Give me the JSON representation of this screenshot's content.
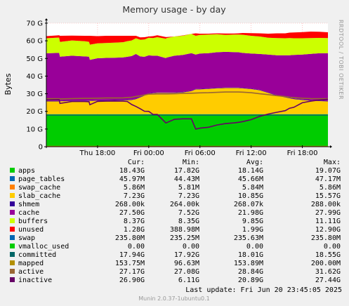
{
  "chart_data": {
    "type": "area",
    "title": "Memory usage - by day",
    "ylabel": "Bytes",
    "side_label": "RRDTOOL / TOBI OETIKER",
    "ylim": [
      0,
      70
    ],
    "y_ticks": [
      0,
      10,
      20,
      30,
      40,
      50,
      60,
      70
    ],
    "y_tick_labels": [
      "0",
      "10 G",
      "20 G",
      "30 G",
      "40 G",
      "50 G",
      "60 G",
      "70 G"
    ],
    "x_ticks": [
      {
        "label": "Thu 18:00",
        "hour": 6
      },
      {
        "label": "Fri 00:00",
        "hour": 12
      },
      {
        "label": "Fri 06:00",
        "hour": 18
      },
      {
        "label": "Fri 12:00",
        "hour": 24
      },
      {
        "label": "Fri 18:00",
        "hour": 30
      }
    ],
    "x_range_hours": [
      0,
      33
    ],
    "grid": true,
    "x": [
      0,
      1.5,
      1.6,
      3,
      4.5,
      5,
      5.1,
      6,
      7,
      8,
      9,
      9.5,
      10,
      10.5,
      11,
      11.5,
      12,
      12.5,
      13,
      14,
      14.1,
      15,
      16,
      17,
      17.5,
      18,
      19,
      20,
      21,
      22,
      22.5,
      23,
      24,
      25,
      26,
      27,
      28,
      28.5,
      29,
      30,
      31,
      32,
      33
    ],
    "series": [
      {
        "name": "apps",
        "color": "#00CC00",
        "values": [
          18.4,
          18.4,
          18.4,
          18.4,
          18.4,
          18.4,
          18.4,
          18.4,
          18.4,
          18.4,
          18.4,
          18.4,
          18.4,
          18.4,
          18.4,
          18.4,
          18.4,
          18.4,
          18.4,
          18.4,
          18.4,
          18.4,
          18.4,
          18.4,
          18.4,
          18.4,
          18.4,
          18.4,
          18.4,
          18.4,
          18.4,
          18.4,
          18.4,
          18.4,
          18.4,
          18.4,
          18.4,
          18.4,
          18.4,
          18.4,
          18.4,
          18.4,
          18.4
        ]
      },
      {
        "name": "page_tables",
        "color": "#0066B3",
        "values": [
          0.05,
          0.05,
          0.05,
          0.05,
          0.05,
          0.05,
          0.05,
          0.05,
          0.05,
          0.05,
          0.05,
          0.05,
          0.05,
          0.05,
          0.05,
          0.05,
          0.05,
          0.05,
          0.05,
          0.05,
          0.05,
          0.05,
          0.05,
          0.05,
          0.05,
          0.05,
          0.05,
          0.05,
          0.05,
          0.05,
          0.05,
          0.05,
          0.05,
          0.05,
          0.05,
          0.05,
          0.05,
          0.05,
          0.05,
          0.05,
          0.05,
          0.05,
          0.05
        ]
      },
      {
        "name": "swap_cache",
        "color": "#FF8000",
        "values": [
          0.01,
          0.01,
          0.01,
          0.01,
          0.01,
          0.01,
          0.01,
          0.01,
          0.01,
          0.01,
          0.01,
          0.01,
          0.01,
          0.01,
          0.01,
          0.01,
          0.01,
          0.01,
          0.01,
          0.01,
          0.01,
          0.01,
          0.01,
          0.01,
          0.01,
          0.01,
          0.01,
          0.01,
          0.01,
          0.01,
          0.01,
          0.01,
          0.01,
          0.01,
          0.01,
          0.01,
          0.01,
          0.01,
          0.01,
          0.01,
          0.01,
          0.01,
          0.01
        ]
      },
      {
        "name": "slab_cache",
        "color": "#FFCC00",
        "values": [
          7.2,
          7.2,
          7.3,
          7.4,
          7.4,
          7.5,
          7.5,
          7.6,
          7.6,
          7.7,
          7.8,
          7.9,
          8.0,
          8.5,
          9.5,
          10.5,
          11.5,
          11.8,
          12.0,
          12.0,
          12.0,
          12.0,
          12.3,
          13.0,
          14.0,
          14.0,
          14.3,
          14.6,
          14.8,
          14.8,
          14.8,
          14.6,
          14.2,
          13.5,
          12.0,
          10.5,
          9.5,
          9.0,
          8.5,
          8.0,
          7.6,
          7.4,
          7.2
        ]
      },
      {
        "name": "shmem",
        "color": "#330099",
        "values": [
          0.27,
          0.27,
          0.27,
          0.27,
          0.27,
          0.27,
          0.27,
          0.27,
          0.27,
          0.27,
          0.27,
          0.27,
          0.27,
          0.27,
          0.27,
          0.27,
          0.27,
          0.27,
          0.27,
          0.27,
          0.27,
          0.27,
          0.27,
          0.27,
          0.27,
          0.27,
          0.27,
          0.27,
          0.27,
          0.27,
          0.27,
          0.27,
          0.27,
          0.27,
          0.27,
          0.27,
          0.27,
          0.27,
          0.27,
          0.27,
          0.27,
          0.27,
          0.27
        ]
      },
      {
        "name": "cache",
        "color": "#990099",
        "values": [
          27.0,
          27.2,
          25.0,
          25.4,
          25.0,
          24.8,
          23.0,
          23.8,
          24.0,
          24.0,
          24.1,
          24.3,
          24.6,
          25.3,
          22.9,
          21.7,
          21.5,
          21.0,
          20.8,
          19.5,
          19.8,
          20.8,
          21.0,
          21.3,
          19.5,
          20.1,
          20.0,
          20.2,
          20.2,
          20.1,
          20.0,
          19.8,
          19.9,
          20.3,
          21.5,
          22.6,
          23.6,
          24.1,
          24.8,
          25.5,
          26.3,
          26.8,
          27.1
        ]
      },
      {
        "name": "buffers",
        "color": "#CCFF00",
        "values": [
          8.5,
          8.7,
          8.3,
          8.7,
          8.6,
          8.4,
          8.6,
          8.4,
          8.4,
          8.5,
          8.6,
          8.9,
          8.9,
          8.9,
          9.5,
          9.8,
          10.0,
          10.0,
          10.5,
          11.0,
          11.0,
          10.9,
          10.8,
          10.9,
          10.6,
          10.5,
          10.5,
          10.2,
          9.6,
          9.9,
          10.0,
          10.3,
          10.0,
          9.9,
          9.5,
          9.7,
          9.6,
          9.7,
          9.4,
          9.2,
          8.9,
          8.7,
          8.5
        ]
      },
      {
        "name": "unused",
        "color": "#FF0000",
        "values": [
          1.2,
          1.3,
          3.5,
          2.7,
          3.1,
          3.4,
          5.0,
          4.1,
          4.1,
          3.9,
          3.6,
          3.0,
          2.6,
          1.4,
          1.3,
          1.3,
          0.7,
          1.1,
          1.1,
          0.9,
          0.6,
          0.0,
          0.2,
          0.0,
          1.4,
          0.7,
          0.5,
          0.5,
          0.8,
          0.6,
          0.7,
          1.0,
          1.5,
          1.8,
          2.3,
          2.7,
          2.8,
          3.1,
          3.3,
          3.5,
          3.7,
          3.5,
          3.3
        ]
      }
    ],
    "lines": [
      {
        "name": "committed",
        "color": "#006666",
        "values": [
          17.9,
          17.9,
          17.9,
          17.9,
          17.9,
          17.9,
          17.9,
          17.9,
          17.9,
          17.9,
          17.9,
          17.9,
          17.9,
          17.9,
          17.9,
          17.9,
          17.9,
          17.9,
          17.9,
          17.9,
          17.9,
          17.9,
          17.9,
          17.9,
          17.9,
          17.9,
          17.9,
          17.9,
          17.9,
          17.9,
          17.9,
          17.9,
          17.9,
          17.9,
          17.9,
          17.9,
          17.9,
          17.9,
          17.9,
          17.9,
          17.9,
          17.9,
          17.9
        ]
      },
      {
        "name": "mapped",
        "color": "#B38F00",
        "values": [
          0.15,
          0.15,
          0.15,
          0.15,
          0.15,
          0.15,
          0.15,
          0.15,
          0.15,
          0.15,
          0.15,
          0.15,
          0.15,
          0.15,
          0.15,
          0.15,
          0.15,
          0.15,
          0.15,
          0.15,
          0.15,
          0.15,
          0.15,
          0.15,
          0.15,
          0.15,
          0.15,
          0.15,
          0.15,
          0.15,
          0.15,
          0.15,
          0.15,
          0.15,
          0.15,
          0.15,
          0.15,
          0.15,
          0.15,
          0.15,
          0.15,
          0.15,
          0.15
        ]
      },
      {
        "name": "active",
        "color": "#996633",
        "values": [
          27.2,
          27.2,
          27.1,
          27.3,
          27.4,
          27.4,
          27.4,
          27.5,
          27.6,
          27.6,
          27.7,
          27.9,
          28.0,
          28.5,
          28.8,
          29.3,
          29.8,
          29.8,
          29.9,
          29.9,
          29.9,
          30.0,
          30.2,
          30.3,
          30.4,
          30.5,
          30.6,
          30.8,
          31.0,
          31.0,
          31.0,
          30.9,
          30.6,
          30.0,
          29.5,
          28.9,
          28.4,
          28.0,
          27.8,
          27.5,
          27.3,
          27.2,
          27.2
        ]
      },
      {
        "name": "inactive",
        "color": "#660066",
        "values": [
          26.5,
          26.7,
          24.5,
          25.6,
          25.6,
          25.5,
          23.8,
          25.7,
          25.8,
          25.9,
          25.8,
          25.6,
          23.9,
          22.8,
          21.5,
          20.1,
          20.0,
          18.3,
          18.3,
          13.5,
          13.6,
          15.5,
          15.8,
          15.8,
          10.0,
          10.5,
          11.0,
          12.3,
          13.1,
          13.5,
          13.8,
          14.2,
          15.3,
          17.2,
          18.5,
          19.5,
          20.4,
          21.8,
          22.3,
          24.9,
          25.8,
          26.5,
          26.9
        ]
      }
    ],
    "legend_header": {
      "cur": "Cur:",
      "min": "Min:",
      "avg": "Avg:",
      "max": "Max:"
    },
    "legend": [
      {
        "name": "apps",
        "color": "#00CC00",
        "cur": "18.43G",
        "min": "17.82G",
        "avg": "18.14G",
        "max": "19.07G"
      },
      {
        "name": "page_tables",
        "color": "#0066B3",
        "cur": "45.97M",
        "min": "44.43M",
        "avg": "45.66M",
        "max": "47.17M"
      },
      {
        "name": "swap_cache",
        "color": "#FF8000",
        "cur": "5.86M",
        "min": "5.81M",
        "avg": "5.84M",
        "max": "5.86M"
      },
      {
        "name": "slab_cache",
        "color": "#FFCC00",
        "cur": "7.23G",
        "min": "7.23G",
        "avg": "10.85G",
        "max": "15.57G"
      },
      {
        "name": "shmem",
        "color": "#330099",
        "cur": "268.00k",
        "min": "264.00k",
        "avg": "268.07k",
        "max": "288.00k"
      },
      {
        "name": "cache",
        "color": "#990099",
        "cur": "27.50G",
        "min": "7.52G",
        "avg": "21.98G",
        "max": "27.99G"
      },
      {
        "name": "buffers",
        "color": "#CCFF00",
        "cur": "8.37G",
        "min": "8.35G",
        "avg": "9.85G",
        "max": "11.11G"
      },
      {
        "name": "unused",
        "color": "#FF0000",
        "cur": "1.28G",
        "min": "388.98M",
        "avg": "1.99G",
        "max": "12.90G"
      },
      {
        "name": "swap",
        "color": "#0066B3",
        "cur": "235.80M",
        "min": "235.25M",
        "avg": "235.63M",
        "max": "235.80M"
      },
      {
        "name": "vmalloc_used",
        "color": "#00CC00",
        "cur": "0.00",
        "min": "0.00",
        "avg": "0.00",
        "max": "0.00"
      },
      {
        "name": "committed",
        "color": "#006666",
        "cur": "17.94G",
        "min": "17.92G",
        "avg": "18.01G",
        "max": "18.55G"
      },
      {
        "name": "mapped",
        "color": "#B38F00",
        "cur": "153.75M",
        "min": "96.63M",
        "avg": "153.89M",
        "max": "200.00M"
      },
      {
        "name": "active",
        "color": "#996633",
        "cur": "27.17G",
        "min": "27.08G",
        "avg": "28.84G",
        "max": "31.62G"
      },
      {
        "name": "inactive",
        "color": "#660066",
        "cur": "26.90G",
        "min": "6.11G",
        "avg": "20.89G",
        "max": "27.44G"
      }
    ],
    "last_update": "Last update: Fri Jun 20 23:45:05 2025",
    "footer": "Munin 2.0.37-1ubuntu0.1"
  }
}
